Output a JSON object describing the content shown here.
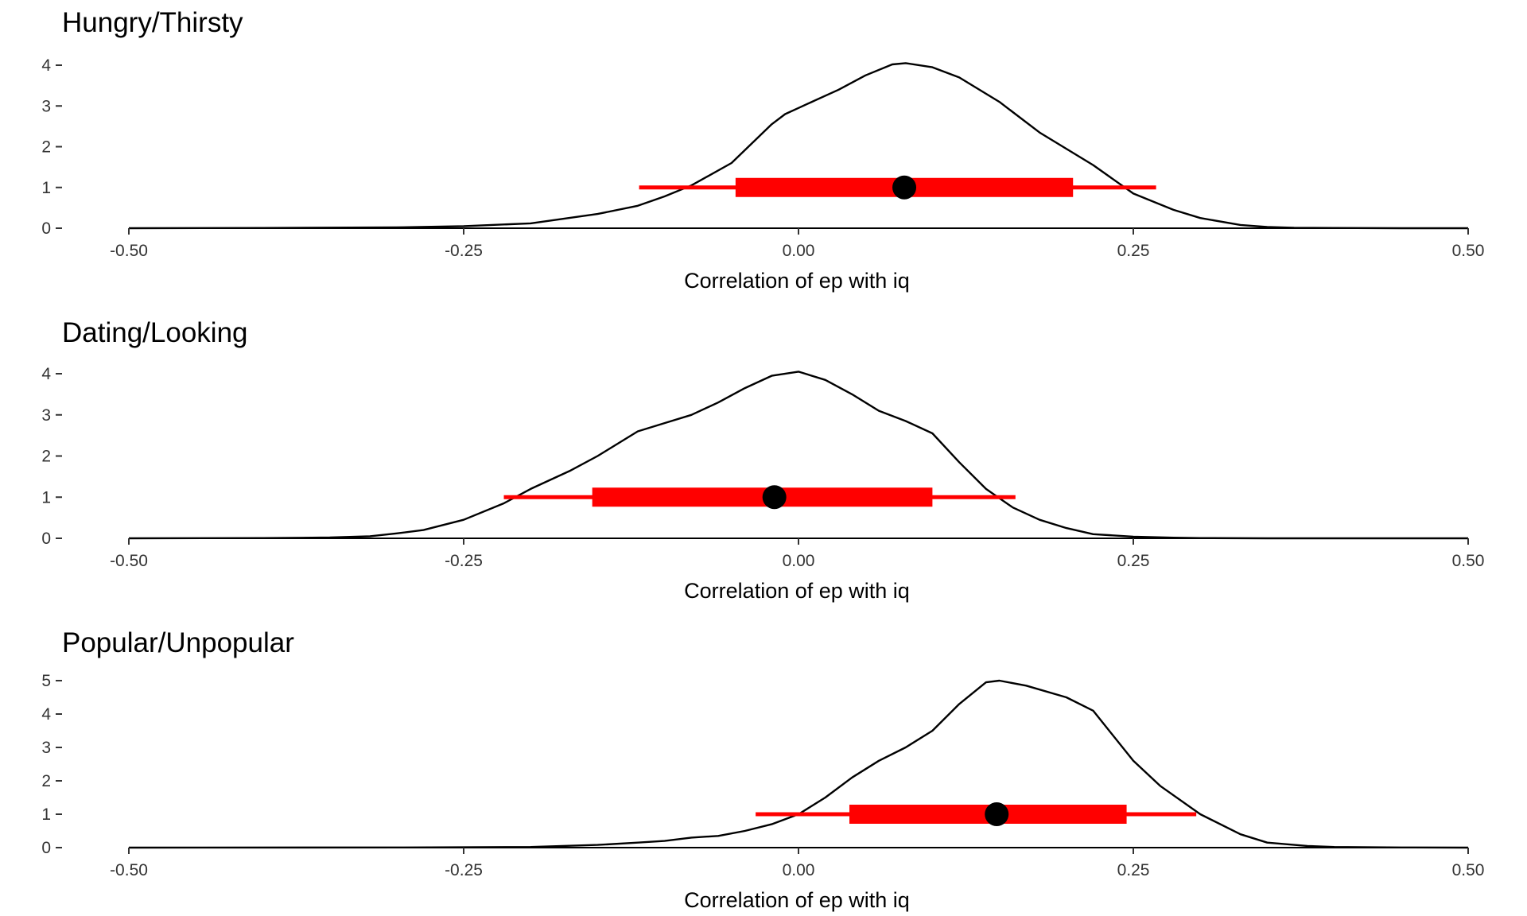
{
  "chart_data": [
    {
      "type": "area",
      "title": "Hungry/Thirsty",
      "xlabel": "Correlation of ep with iq",
      "ylabel": "",
      "xlim": [
        -0.5,
        0.5
      ],
      "ylim": [
        0,
        4
      ],
      "x_ticks": [
        "-0.50",
        "-0.25",
        "0.00",
        "0.25",
        "0.50"
      ],
      "y_ticks": [
        "0",
        "1",
        "2",
        "3",
        "4"
      ],
      "grid": false,
      "legend": "none",
      "density": {
        "x": [
          -0.5,
          -0.4,
          -0.3,
          -0.25,
          -0.2,
          -0.15,
          -0.12,
          -0.1,
          -0.08,
          -0.05,
          -0.02,
          -0.01,
          0.0,
          0.01,
          0.03,
          0.05,
          0.07,
          0.08,
          0.1,
          0.12,
          0.15,
          0.18,
          0.2,
          0.22,
          0.25,
          0.28,
          0.3,
          0.33,
          0.35,
          0.37,
          0.4,
          0.45,
          0.5
        ],
        "y": [
          0,
          0.005,
          0.02,
          0.05,
          0.12,
          0.35,
          0.55,
          0.78,
          1.05,
          1.6,
          2.55,
          2.8,
          2.95,
          3.1,
          3.4,
          3.75,
          4.02,
          4.05,
          3.95,
          3.7,
          3.1,
          2.35,
          1.95,
          1.55,
          0.85,
          0.45,
          0.25,
          0.08,
          0.03,
          0.01,
          0.005,
          0,
          0
        ],
        "color": "#000000"
      },
      "interval": {
        "point": 0.079,
        "inner": [
          -0.047,
          0.205
        ],
        "outer": [
          -0.119,
          0.267
        ],
        "color": "#ff0000",
        "point_color": "#000000"
      }
    },
    {
      "type": "area",
      "title": "Dating/Looking",
      "xlabel": "Correlation of ep with iq",
      "ylabel": "",
      "xlim": [
        -0.5,
        0.5
      ],
      "ylim": [
        0,
        4
      ],
      "x_ticks": [
        "-0.50",
        "-0.25",
        "0.00",
        "0.25",
        "0.50"
      ],
      "y_ticks": [
        "0",
        "1",
        "2",
        "3",
        "4"
      ],
      "grid": false,
      "legend": "none",
      "density": {
        "x": [
          -0.5,
          -0.4,
          -0.35,
          -0.32,
          -0.3,
          -0.28,
          -0.25,
          -0.22,
          -0.2,
          -0.17,
          -0.15,
          -0.12,
          -0.1,
          -0.08,
          -0.06,
          -0.04,
          -0.02,
          0.0,
          0.02,
          0.04,
          0.06,
          0.08,
          0.1,
          0.12,
          0.14,
          0.16,
          0.18,
          0.2,
          0.22,
          0.25,
          0.28,
          0.3,
          0.35,
          0.4,
          0.5
        ],
        "y": [
          0,
          0.005,
          0.02,
          0.05,
          0.12,
          0.2,
          0.45,
          0.85,
          1.2,
          1.65,
          2.0,
          2.6,
          2.8,
          3.0,
          3.3,
          3.65,
          3.95,
          4.05,
          3.85,
          3.5,
          3.1,
          2.85,
          2.55,
          1.85,
          1.2,
          0.75,
          0.45,
          0.25,
          0.1,
          0.04,
          0.015,
          0.005,
          0,
          0,
          0
        ],
        "color": "#000000"
      },
      "interval": {
        "point": -0.018,
        "inner": [
          -0.154,
          0.1
        ],
        "outer": [
          -0.22,
          0.162
        ],
        "color": "#ff0000",
        "point_color": "#000000"
      }
    },
    {
      "type": "area",
      "title": "Popular/Unpopular",
      "xlabel": "Correlation of ep with iq",
      "ylabel": "",
      "xlim": [
        -0.5,
        0.5
      ],
      "ylim": [
        0,
        5
      ],
      "x_ticks": [
        "-0.50",
        "-0.25",
        "0.00",
        "0.25",
        "0.50"
      ],
      "y_ticks": [
        "0",
        "1",
        "2",
        "3",
        "4",
        "5"
      ],
      "grid": false,
      "legend": "none",
      "density": {
        "x": [
          -0.5,
          -0.3,
          -0.2,
          -0.15,
          -0.12,
          -0.1,
          -0.08,
          -0.06,
          -0.04,
          -0.02,
          0.0,
          0.02,
          0.04,
          0.06,
          0.08,
          0.1,
          0.12,
          0.14,
          0.15,
          0.17,
          0.2,
          0.22,
          0.25,
          0.27,
          0.3,
          0.33,
          0.35,
          0.38,
          0.4,
          0.45,
          0.5
        ],
        "y": [
          0,
          0.005,
          0.02,
          0.08,
          0.15,
          0.2,
          0.3,
          0.35,
          0.5,
          0.7,
          1.0,
          1.5,
          2.1,
          2.6,
          3.0,
          3.5,
          4.3,
          4.95,
          5.0,
          4.85,
          4.5,
          4.1,
          2.6,
          1.85,
          1.0,
          0.4,
          0.15,
          0.05,
          0.02,
          0.005,
          0
        ],
        "color": "#000000"
      },
      "interval": {
        "point": 0.148,
        "inner": [
          0.038,
          0.245
        ],
        "outer": [
          -0.032,
          0.297
        ],
        "color": "#ff0000",
        "point_color": "#000000"
      }
    }
  ]
}
